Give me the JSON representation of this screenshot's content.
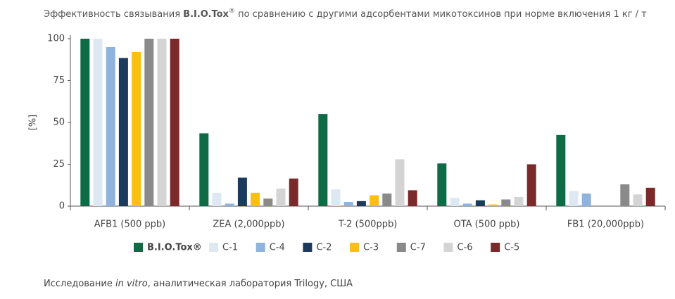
{
  "chart_data": {
    "type": "bar",
    "title": [
      "Эффективность связывания ",
      "B.I.O.Tox",
      "®",
      " по сравнению с другими адсорбентами микотоксинов при норме включения 1 кг / т"
    ],
    "ylabel": "[%]",
    "categories": [
      "AFB1 (500 ppb)",
      "ZEA (2,000ppb)",
      "T-2 (500ppb)",
      "OTA (500 ppb)",
      "FB1 (20,000ppb)"
    ],
    "series": [
      {
        "name": "B.I.O.Tox®",
        "color": "#0e6b45",
        "values": [
          100,
          43.5,
          55,
          25.5,
          42.5
        ]
      },
      {
        "name": "C-1",
        "color": "#dde8f2",
        "values": [
          100,
          8,
          10,
          5,
          9
        ]
      },
      {
        "name": "C-4",
        "color": "#8fb3dc",
        "values": [
          95,
          1.5,
          2.5,
          1.5,
          7.5
        ]
      },
      {
        "name": "C-2",
        "color": "#1b3a5e",
        "values": [
          88.5,
          17,
          3,
          3.5,
          null
        ]
      },
      {
        "name": "C-3",
        "color": "#f9c012",
        "values": [
          92,
          8,
          6.5,
          1,
          null
        ]
      },
      {
        "name": "C-7",
        "color": "#8a8a8a",
        "values": [
          100,
          4.5,
          7.5,
          4,
          13
        ]
      },
      {
        "name": "C-6",
        "color": "#d4d4d4",
        "values": [
          100,
          10.5,
          28,
          5.5,
          7
        ]
      },
      {
        "name": "C-5",
        "color": "#7a2a2a",
        "values": [
          100,
          16.5,
          9.5,
          25,
          11
        ]
      }
    ],
    "ylim": [
      0,
      100
    ],
    "yticks": [
      0,
      25,
      50,
      75,
      100
    ],
    "grid": false,
    "note": [
      "Исследование ",
      "in vitro",
      ", аналитическая лаборатория Trilogy, США"
    ]
  }
}
